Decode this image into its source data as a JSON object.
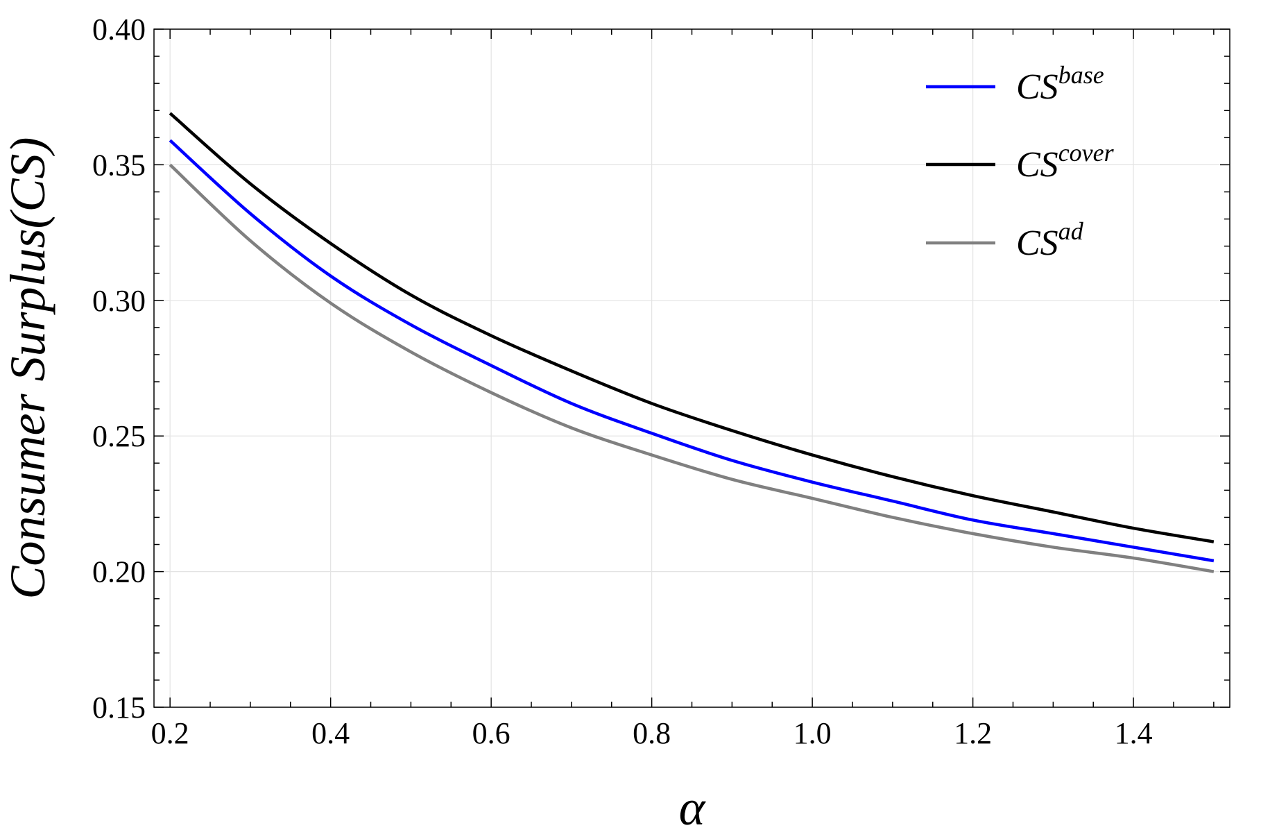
{
  "chart_data": {
    "type": "line",
    "xlabel": "α",
    "ylabel": "Consumer Surplus(CS)",
    "xlim": [
      0.18,
      1.52
    ],
    "ylim": [
      0.15,
      0.4
    ],
    "xticks": [
      0.2,
      0.4,
      0.6,
      0.8,
      1.0,
      1.2,
      1.4
    ],
    "xtick_labels": [
      "0.2",
      "0.4",
      "0.6",
      "0.8",
      "1.0",
      "1.2",
      "1.4"
    ],
    "yticks": [
      0.15,
      0.2,
      0.25,
      0.3,
      0.35,
      0.4
    ],
    "ytick_labels": [
      "0.15",
      "0.20",
      "0.25",
      "0.30",
      "0.35",
      "0.40"
    ],
    "grid": true,
    "legend_position": "top-right",
    "x": [
      0.2,
      0.3,
      0.4,
      0.5,
      0.6,
      0.7,
      0.8,
      0.9,
      1.0,
      1.1,
      1.2,
      1.3,
      1.4,
      1.5
    ],
    "series": [
      {
        "name": "CS",
        "name_sup": "base",
        "color": "#0000ff",
        "values": [
          0.359,
          0.332,
          0.309,
          0.291,
          0.276,
          0.262,
          0.251,
          0.241,
          0.233,
          0.226,
          0.219,
          0.214,
          0.209,
          0.204
        ]
      },
      {
        "name": "CS",
        "name_sup": "cover",
        "color": "#000000",
        "values": [
          0.369,
          0.343,
          0.321,
          0.302,
          0.287,
          0.274,
          0.262,
          0.252,
          0.243,
          0.235,
          0.228,
          0.222,
          0.216,
          0.211
        ]
      },
      {
        "name": "CS",
        "name_sup": "ad",
        "color": "#808080",
        "values": [
          0.35,
          0.322,
          0.299,
          0.281,
          0.266,
          0.253,
          0.243,
          0.234,
          0.227,
          0.22,
          0.214,
          0.209,
          0.205,
          0.2
        ]
      }
    ]
  }
}
